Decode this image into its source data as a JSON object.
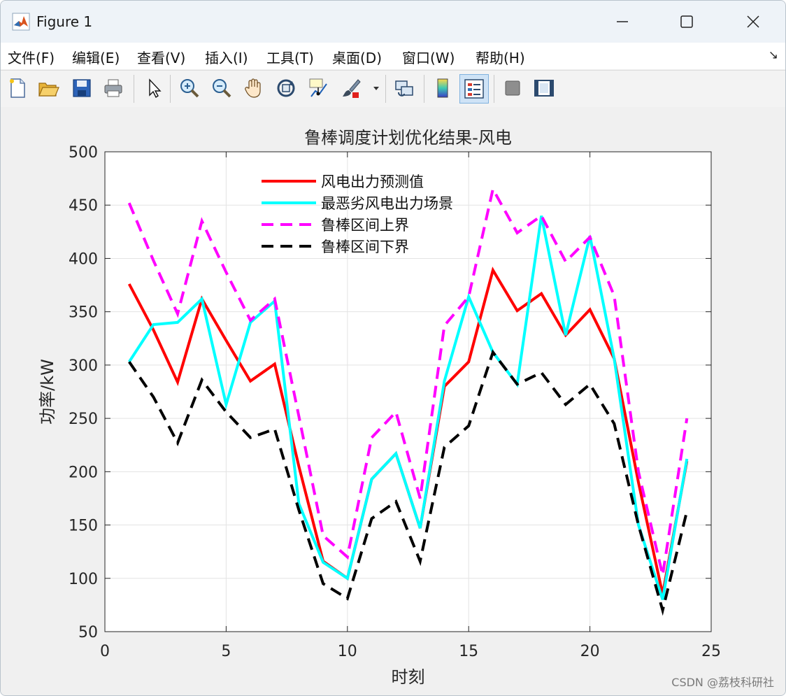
{
  "window": {
    "title": "Figure 1"
  },
  "menu": [
    {
      "label": "文件(F)"
    },
    {
      "label": "编辑(E)"
    },
    {
      "label": "查看(V)"
    },
    {
      "label": "插入(I)"
    },
    {
      "label": "工具(T)"
    },
    {
      "label": "桌面(D)"
    },
    {
      "label": "窗口(W)"
    },
    {
      "label": "帮助(H)"
    }
  ],
  "toolbar": [
    {
      "icon": "new-figure-icon"
    },
    {
      "icon": "open-file-icon"
    },
    {
      "icon": "save-icon"
    },
    {
      "icon": "print-icon"
    },
    {
      "icon": "select-pointer-icon"
    },
    {
      "icon": "zoom-in-icon"
    },
    {
      "icon": "zoom-out-icon"
    },
    {
      "icon": "pan-hand-icon"
    },
    {
      "icon": "rotate-3d-icon"
    },
    {
      "icon": "data-cursor-icon"
    },
    {
      "icon": "brush-icon"
    },
    {
      "icon": "link-plot-icon"
    },
    {
      "icon": "colorbar-icon"
    },
    {
      "icon": "legend-icon"
    },
    {
      "icon": "hide-plot-tools-icon"
    },
    {
      "icon": "show-plot-tools-icon"
    }
  ],
  "watermark": "CSDN @荔枝科研社",
  "chart_data": {
    "type": "line",
    "title": "鲁棒调度计划优化结果-风电",
    "xlabel": "时刻",
    "ylabel": "功率/kW",
    "xlim": [
      0,
      25
    ],
    "ylim": [
      50,
      500
    ],
    "xticks": [
      0,
      5,
      10,
      15,
      20,
      25
    ],
    "yticks": [
      50,
      100,
      150,
      200,
      250,
      300,
      350,
      400,
      450,
      500
    ],
    "grid": true,
    "legend_position": "top-center",
    "x": [
      1,
      2,
      3,
      4,
      5,
      6,
      7,
      8,
      9,
      10,
      11,
      12,
      13,
      14,
      15,
      16,
      17,
      18,
      19,
      20,
      21,
      22,
      23,
      24
    ],
    "series": [
      {
        "name": "风电出力预测值",
        "color": "#ff0000",
        "dash": "solid",
        "values": [
          376,
          333,
          284,
          362,
          323,
          285,
          301,
          205,
          116,
          100,
          193,
          217,
          147,
          280,
          303,
          389,
          351,
          367,
          328,
          352,
          306,
          190,
          85,
          210
        ]
      },
      {
        "name": "最恶劣风电出力场景",
        "color": "#00ffff",
        "dash": "solid",
        "values": [
          303,
          338,
          340,
          362,
          263,
          340,
          360,
          170,
          115,
          100,
          193,
          217,
          147,
          285,
          364,
          312,
          282,
          440,
          328,
          421,
          306,
          150,
          80,
          212
        ]
      },
      {
        "name": "鲁棒区间上界",
        "color": "#ff00ff",
        "dash": "dashed",
        "values": [
          452,
          398,
          348,
          435,
          387,
          342,
          362,
          252,
          140,
          120,
          232,
          256,
          175,
          337,
          364,
          465,
          424,
          440,
          397,
          420,
          365,
          200,
          103,
          250
        ]
      },
      {
        "name": "鲁棒区间下界",
        "color": "#000000",
        "dash": "dashed",
        "values": [
          303,
          270,
          227,
          286,
          256,
          232,
          240,
          164,
          95,
          81,
          156,
          172,
          116,
          223,
          243,
          312,
          282,
          293,
          263,
          282,
          245,
          150,
          70,
          163
        ]
      }
    ]
  }
}
